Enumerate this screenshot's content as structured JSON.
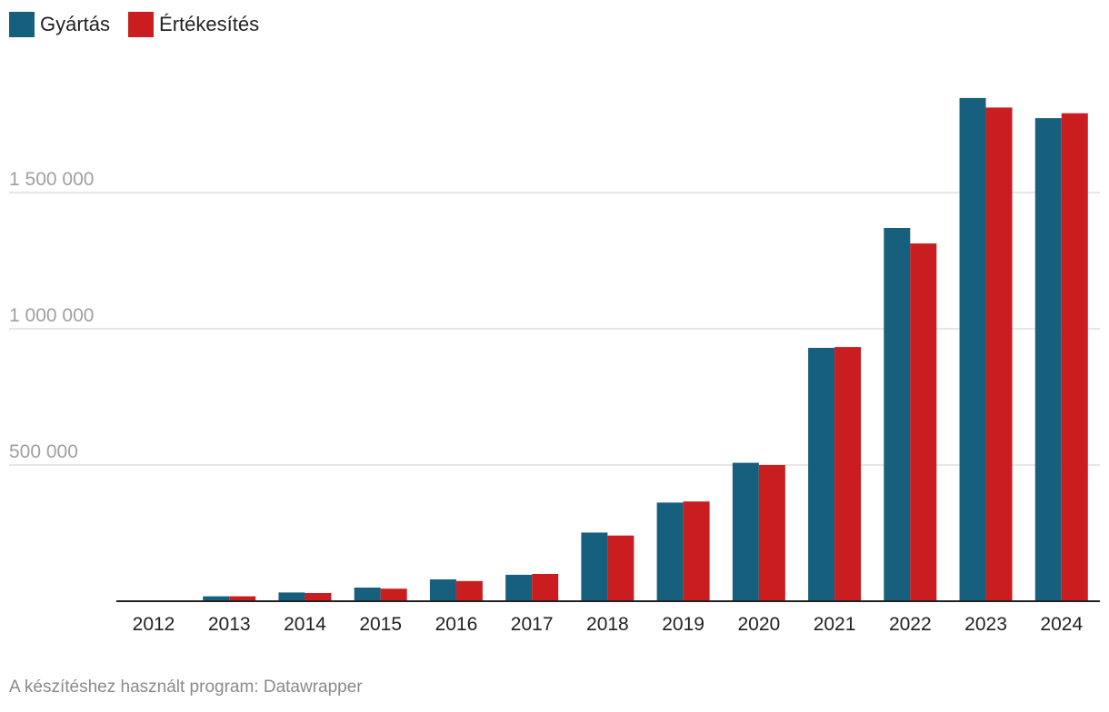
{
  "legend": {
    "items": [
      {
        "label": "Gyártás",
        "color": "#17607d"
      },
      {
        "label": "Értékesítés",
        "color": "#c91d1f"
      }
    ],
    "placement": "top-left"
  },
  "footer": {
    "credit": "A készítéshez használt program: Datawrapper"
  },
  "chart_data": {
    "type": "bar",
    "categories": [
      "2012",
      "2013",
      "2014",
      "2015",
      "2016",
      "2017",
      "2018",
      "2019",
      "2020",
      "2021",
      "2022",
      "2023",
      "2024"
    ],
    "series": [
      {
        "name": "Gyártás",
        "color": "#17607d",
        "values": [
          0,
          18000,
          32000,
          50000,
          80000,
          97000,
          252000,
          362000,
          508000,
          930000,
          1370000,
          1847000,
          1773000
        ]
      },
      {
        "name": "Értékesítés",
        "color": "#c91d1f",
        "values": [
          0,
          18000,
          30000,
          46000,
          74000,
          100000,
          241000,
          366000,
          500000,
          933000,
          1313000,
          1812000,
          1791000
        ]
      }
    ],
    "ylim": [
      0,
      1900000
    ],
    "yticks": [
      {
        "value": 500000,
        "label": "500 000"
      },
      {
        "value": 1000000,
        "label": "1 000 000"
      },
      {
        "value": 1500000,
        "label": "1 500 000"
      }
    ],
    "grid": true,
    "title": "",
    "xlabel": "",
    "ylabel": ""
  }
}
